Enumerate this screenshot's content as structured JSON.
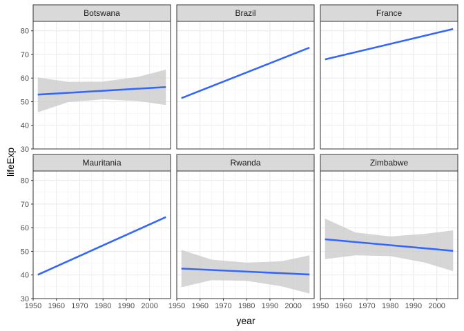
{
  "chart_data": {
    "type": "line",
    "xlabel": "year",
    "ylabel": "lifeExp",
    "xlim": [
      1950,
      2009
    ],
    "ylim": [
      30,
      84
    ],
    "x_ticks": [
      1950,
      1960,
      1970,
      1980,
      1990,
      2000
    ],
    "y_ticks": [
      30,
      40,
      50,
      60,
      70,
      80
    ],
    "grid": true,
    "layout": "facet grid 2 rows x 3 columns",
    "line_color": "#3366ff",
    "band_color": "#cccccc",
    "strip_color": "#d9d9d9",
    "panels": [
      {
        "name": "Botswana",
        "x": [
          1952,
          2007
        ],
        "y": [
          53.0,
          56.2
        ],
        "band_x": [
          1952,
          1965,
          1980,
          1995,
          2007
        ],
        "band_lower": [
          45.5,
          49.8,
          51.0,
          50.3,
          48.6
        ],
        "band_upper": [
          60.3,
          58.4,
          58.5,
          60.5,
          63.6
        ]
      },
      {
        "name": "Brazil",
        "x": [
          1952,
          2007
        ],
        "y": [
          51.5,
          72.9
        ]
      },
      {
        "name": "France",
        "x": [
          1952,
          2007
        ],
        "y": [
          67.9,
          80.8
        ]
      },
      {
        "name": "Mauritania",
        "x": [
          1952,
          2007
        ],
        "y": [
          40.1,
          64.5
        ]
      },
      {
        "name": "Rwanda",
        "x": [
          1952,
          2007
        ],
        "y": [
          42.7,
          40.2
        ],
        "band_x": [
          1952,
          1965,
          1980,
          1995,
          2007
        ],
        "band_lower": [
          34.8,
          37.8,
          37.5,
          35.2,
          32.1
        ],
        "band_upper": [
          50.6,
          46.5,
          45.2,
          45.8,
          48.3
        ]
      },
      {
        "name": "Zimbabwe",
        "x": [
          1952,
          2007
        ],
        "y": [
          55.1,
          50.2
        ],
        "band_x": [
          1952,
          1965,
          1980,
          1995,
          2007
        ],
        "band_lower": [
          46.7,
          48.3,
          48.0,
          45.2,
          41.6
        ],
        "band_upper": [
          63.9,
          58.0,
          56.3,
          57.4,
          58.9
        ]
      }
    ]
  }
}
